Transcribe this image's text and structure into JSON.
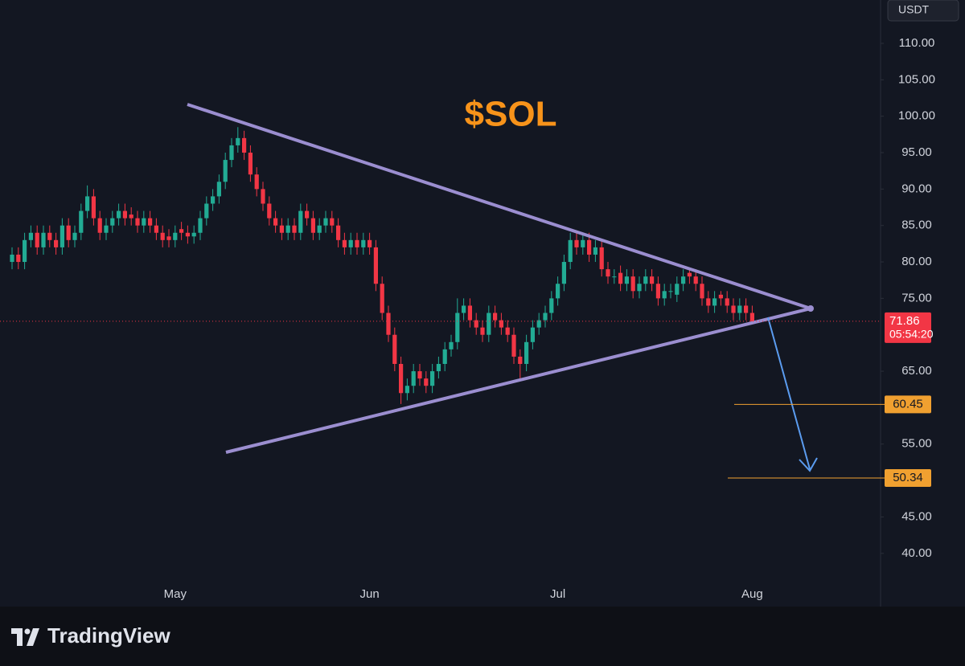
{
  "chart_data": {
    "type": "candlestick",
    "title": "$SOL",
    "currency": "USDT",
    "brand": "TradingView",
    "categories": [
      null,
      null,
      null,
      null,
      null,
      null,
      null,
      null,
      null,
      null,
      null,
      null,
      null,
      null,
      null,
      null,
      null,
      null,
      null,
      null,
      null,
      null,
      null,
      null,
      null,
      null,
      "May",
      null,
      null,
      null,
      null,
      null,
      null,
      null,
      null,
      null,
      null,
      null,
      null,
      null,
      null,
      null,
      null,
      null,
      null,
      null,
      null,
      null,
      null,
      null,
      null,
      null,
      null,
      null,
      null,
      null,
      null,
      "Jun",
      null,
      null,
      null,
      null,
      null,
      null,
      null,
      null,
      null,
      null,
      null,
      null,
      null,
      null,
      null,
      null,
      null,
      null,
      null,
      null,
      null,
      null,
      null,
      null,
      null,
      null,
      null,
      null,
      null,
      "Jul",
      null,
      null,
      null,
      null,
      null,
      null,
      null,
      null,
      null,
      null,
      null,
      null,
      null,
      null,
      null,
      null,
      null,
      null,
      null,
      null,
      null,
      null,
      null,
      null,
      null,
      null,
      null,
      null,
      null,
      null,
      "Aug"
    ],
    "open": [
      80,
      81,
      80,
      83,
      84,
      82,
      84,
      83,
      82,
      85,
      83,
      84,
      87,
      89,
      86,
      84,
      85,
      86,
      87,
      86.5,
      86,
      85,
      86,
      85,
      84,
      83.5,
      83,
      84.5,
      84,
      83.5,
      84,
      86,
      88,
      89,
      91,
      94,
      96,
      97,
      95,
      92,
      90,
      88,
      86,
      85,
      84,
      85,
      84,
      87,
      86,
      84,
      85,
      86,
      85,
      83,
      82,
      83,
      82,
      83,
      82,
      77,
      73,
      70,
      66,
      62,
      63,
      65,
      64,
      63,
      65,
      66,
      68,
      69,
      73,
      74,
      72,
      71,
      70,
      73,
      72,
      71,
      70,
      67,
      66,
      69,
      71,
      72,
      73,
      75,
      77,
      80,
      83,
      82,
      83,
      81,
      82,
      79,
      78,
      78.5,
      77,
      78,
      76,
      77,
      78,
      77,
      75,
      76,
      75.5,
      77,
      78.5,
      78,
      77,
      75,
      74,
      75.5,
      75,
      74,
      73,
      74,
      73
    ],
    "high": [
      82,
      82,
      84,
      85,
      85,
      85,
      85,
      84,
      86,
      86,
      85,
      88,
      90.5,
      90,
      87,
      86,
      87,
      88,
      88,
      87.5,
      87,
      87,
      87,
      86,
      85,
      84.5,
      85,
      85.5,
      85,
      85,
      87,
      89,
      90,
      92,
      95,
      97,
      98.5,
      98,
      96,
      93,
      91,
      89,
      87,
      86,
      86,
      86,
      88,
      88,
      87,
      86,
      87,
      87,
      86,
      84,
      84,
      84,
      84,
      84,
      83,
      78,
      74,
      71,
      67,
      64,
      66,
      66,
      65,
      66,
      67,
      69,
      70,
      75,
      75,
      75,
      73,
      72,
      74,
      74,
      73,
      72,
      71,
      68,
      70,
      72,
      73,
      74,
      76,
      78,
      81,
      84,
      84,
      84,
      84,
      83,
      83,
      80,
      79,
      79.5,
      79,
      79,
      78,
      79,
      79,
      78,
      77,
      77,
      78,
      79,
      79,
      79,
      78,
      76,
      76,
      76,
      76,
      75,
      75,
      75,
      74
    ],
    "low": [
      79,
      79,
      79,
      82,
      81,
      81,
      82,
      81,
      81,
      82,
      82,
      83,
      86,
      85,
      83,
      83,
      84,
      85,
      85,
      85,
      84,
      84,
      84,
      83,
      82,
      82,
      82,
      83,
      82.5,
      82.5,
      83,
      85,
      87,
      88,
      90,
      93,
      95,
      94,
      91,
      89,
      87,
      85,
      84,
      83,
      83,
      83,
      83,
      85,
      83,
      83,
      84,
      84,
      82,
      81,
      81,
      81,
      81,
      81,
      76,
      72,
      69,
      65,
      60.5,
      61,
      62,
      63,
      62,
      62,
      64,
      65,
      67,
      68,
      72,
      71,
      70,
      69,
      69,
      71,
      70,
      69,
      66,
      64,
      65,
      68,
      70,
      71,
      72,
      74,
      76,
      79,
      81,
      81,
      80,
      80,
      78,
      77,
      77,
      76,
      76,
      75,
      75,
      76,
      76,
      74,
      74,
      75,
      74.5,
      76,
      77,
      76,
      74,
      73,
      73,
      74,
      73,
      72,
      72,
      72,
      71.5
    ],
    "close": [
      81,
      80,
      83,
      84,
      82,
      84,
      83,
      82,
      85,
      83,
      84,
      87,
      89,
      86,
      84,
      85,
      86,
      87,
      86,
      86,
      85,
      86,
      85,
      84,
      83,
      83,
      84,
      84,
      83.5,
      84,
      86,
      88,
      89,
      91,
      94,
      96,
      97,
      95,
      92,
      90,
      88,
      86,
      85,
      84,
      85,
      84,
      87,
      86,
      84,
      85,
      86,
      85,
      83,
      82,
      83,
      82,
      83,
      82,
      77,
      73,
      70,
      66,
      62,
      63,
      65,
      64,
      63,
      65,
      66,
      68,
      69,
      73,
      74,
      72,
      71,
      70,
      73,
      72,
      71,
      70,
      67,
      66,
      69,
      71,
      72,
      73,
      75,
      77,
      80,
      83,
      82,
      83,
      81,
      82,
      79,
      78,
      78,
      77,
      78,
      76,
      77,
      78,
      77,
      75,
      76,
      76,
      77,
      78,
      78,
      77,
      75,
      74,
      75,
      75,
      74,
      73,
      74,
      73,
      71.86
    ],
    "up_color": "#22ab94",
    "down_color": "#f23645",
    "ylim": [
      32.7,
      115.95
    ],
    "yticks": [
      {
        "value": 40,
        "label": "40.00"
      },
      {
        "value": 45,
        "label": "45.00"
      },
      {
        "value": 55,
        "label": "55.00"
      },
      {
        "value": 65,
        "label": "65.00"
      },
      {
        "value": 75,
        "label": "75.00"
      },
      {
        "value": 80,
        "label": "80.00"
      },
      {
        "value": 85,
        "label": "85.00"
      },
      {
        "value": 90,
        "label": "90.00"
      },
      {
        "value": 95,
        "label": "95.00"
      },
      {
        "value": 100,
        "label": "100.00"
      },
      {
        "value": 105,
        "label": "105.00"
      },
      {
        "value": 110,
        "label": "110.00"
      }
    ],
    "last_price": 71.86,
    "countdown": "05:54:20",
    "levels": [
      60.45,
      50.34
    ],
    "level_color": "#f0a030"
  }
}
